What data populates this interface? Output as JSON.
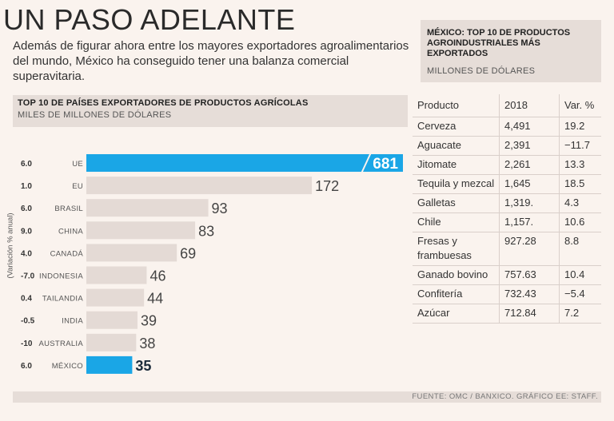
{
  "title": "UN PASO ADELANTE",
  "intro": "Además de figurar ahora entre los mayores exportadores agroalimentarios del mundo, México ha conseguido tener una balanza comercial superavitaria.",
  "footer": "FUENTE: OMC / BANXICO. GRÁFICO EE: STAFF.",
  "colors": {
    "highlight": "#1aa6e6",
    "bar": "#e4dad5",
    "background": "#faf3ee"
  },
  "chart_data": {
    "type": "bar",
    "orientation": "horizontal",
    "title": "TOP 10 DE PAÍSES EXPORTADORES DE PRODUCTOS AGRÍCOLAS",
    "subtitle": "MILES DE MILLONES DE DÓLARES",
    "ylabel": "(Variación % anual)",
    "categories": [
      "UE",
      "EU",
      "BRASIL",
      "CHINA",
      "CANADÁ",
      "INDONESIA",
      "TAILANDIA",
      "INDIA",
      "AUSTRALIA",
      "MÉXICO"
    ],
    "values": [
      681,
      172,
      93,
      83,
      69,
      46,
      44,
      39,
      38,
      35
    ],
    "value_labels": [
      "681",
      "172",
      "93",
      "83",
      "69",
      "46",
      "44",
      "39",
      "38",
      "35"
    ],
    "variation": [
      "6.0",
      "1.0",
      "6.0",
      "9.0",
      "4.0",
      "-7.0",
      "0.4",
      "-0.5",
      "-10",
      "6.0"
    ],
    "highlighted": [
      "UE",
      "MÉXICO"
    ],
    "axis_break": true
  },
  "table": {
    "title": "MÉXICO: TOP 10 DE PRODUCTOS AGROINDUSTRIALES MÁS EXPORTADOS",
    "subtitle": "MILLONES DE DÓLARES",
    "headers": [
      "Producto",
      "2018",
      "Var. %"
    ],
    "rows": [
      [
        "Cerveza",
        "4,491",
        "19.2"
      ],
      [
        "Aguacate",
        "2,391",
        "−11.7"
      ],
      [
        "Jitomate",
        "2,261",
        "13.3"
      ],
      [
        "Tequila y mezcal",
        "1,645",
        "18.5"
      ],
      [
        "Galletas",
        "1,319.",
        "4.3"
      ],
      [
        "Chile",
        "1,157.",
        "10.6"
      ],
      [
        "Fresas y frambuesas",
        "927.28",
        "8.8"
      ],
      [
        "Ganado bovino",
        "757.63",
        "10.4"
      ],
      [
        "Confitería",
        "732.43",
        "−5.4"
      ],
      [
        "Azúcar",
        "712.84",
        "7.2"
      ]
    ]
  }
}
